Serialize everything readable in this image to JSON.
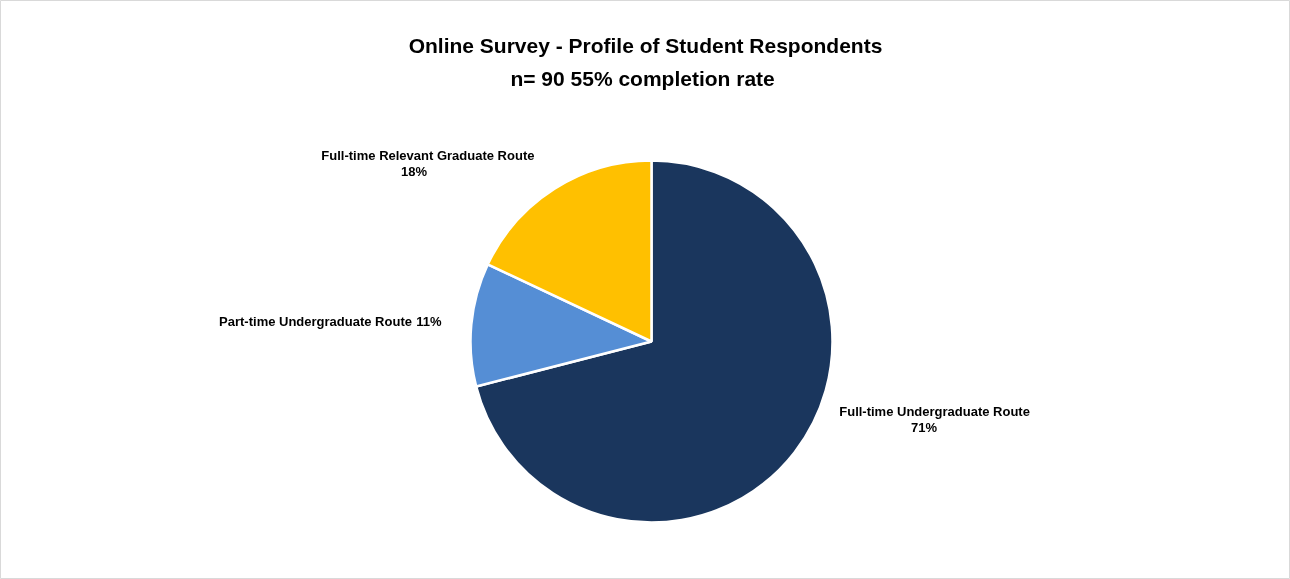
{
  "chart_data": {
    "type": "pie",
    "title": "Online Survey - Profile of Student Respondents",
    "subtitle": "n= 90  55% completion rate",
    "categories": [
      "Full-time Undergraduate Route",
      "Part-time Undergraduate Route",
      "Full-time Relevant Graduate Route"
    ],
    "values": [
      71,
      11,
      18
    ],
    "value_labels": [
      "71%",
      "11%",
      "18%"
    ],
    "colors": [
      "#1a365d",
      "#558ed5",
      "#ffc000"
    ]
  }
}
